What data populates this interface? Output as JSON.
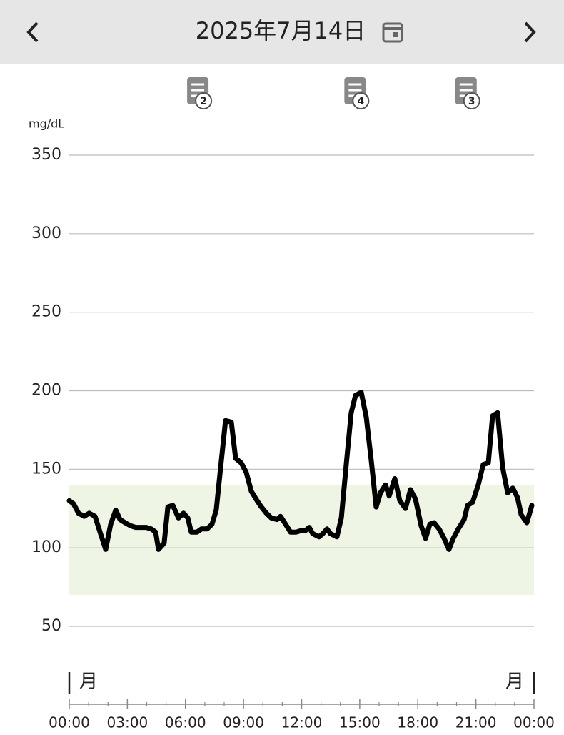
{
  "header": {
    "date": "2025年7月14日"
  },
  "chart_data": {
    "type": "line",
    "unit": "mg/dL",
    "x": [
      0,
      0.22,
      0.48,
      0.77,
      1.03,
      1.33,
      1.59,
      1.88,
      2.14,
      2.4,
      2.62,
      2.88,
      3.17,
      3.43,
      3.72,
      3.98,
      4.24,
      4.46,
      4.61,
      4.9,
      5.09,
      5.35,
      5.64,
      5.9,
      6.12,
      6.3,
      6.6,
      6.82,
      7.12,
      7.37,
      7.59,
      7.85,
      8.07,
      8.37,
      8.59,
      8.88,
      9.14,
      9.4,
      9.7,
      9.92,
      10.18,
      10.43,
      10.73,
      10.91,
      11.17,
      11.43,
      11.72,
      11.98,
      12.2,
      12.39,
      12.57,
      12.9,
      13.09,
      13.31,
      13.49,
      13.82,
      14.05,
      14.31,
      14.56,
      14.78,
      15.08,
      15.34,
      15.59,
      15.85,
      16.07,
      16.33,
      16.52,
      16.81,
      17.07,
      17.36,
      17.62,
      17.88,
      18.17,
      18.4,
      18.62,
      18.84,
      19.1,
      19.36,
      19.61,
      19.83,
      20.09,
      20.39,
      20.57,
      20.83,
      21.12,
      21.38,
      21.64,
      21.86,
      22.12,
      22.38,
      22.64,
      22.9,
      23.15,
      23.34,
      23.63,
      23.89
    ],
    "values": [
      130,
      128,
      122,
      120,
      122,
      120,
      110,
      99,
      115,
      124,
      118,
      116,
      114,
      113,
      113,
      113,
      112,
      110,
      99,
      103,
      126,
      127,
      119,
      122,
      119,
      110,
      110,
      112,
      112,
      115,
      124,
      155,
      181,
      180,
      157,
      154,
      148,
      136,
      130,
      126,
      122,
      119,
      118,
      120,
      115,
      110,
      110,
      111,
      111,
      113,
      109,
      107,
      109,
      112,
      109,
      107,
      119,
      154,
      186,
      197,
      199,
      183,
      156,
      126,
      135,
      140,
      133,
      144,
      130,
      125,
      137,
      131,
      114,
      106,
      115,
      116,
      112,
      106,
      99,
      106,
      112,
      118,
      127,
      129,
      140,
      153,
      154,
      184,
      186,
      151,
      135,
      138,
      132,
      121,
      116,
      127
    ],
    "color": "#000000",
    "target_range": [
      70,
      140
    ],
    "target_color": "#eef5e4",
    "ylim": [
      50,
      350
    ],
    "yticks": [
      50,
      100,
      150,
      200,
      250,
      300,
      350
    ],
    "grid": true,
    "xlim": [
      0,
      24
    ],
    "xticks": [
      {
        "value": 0,
        "label": "00:00"
      },
      {
        "value": 3,
        "label": "03:00"
      },
      {
        "value": 6,
        "label": "06:00"
      },
      {
        "value": 9,
        "label": "09:00"
      },
      {
        "value": 12,
        "label": "12:00"
      },
      {
        "value": 15,
        "label": "15:00"
      },
      {
        "value": 18,
        "label": "18:00"
      },
      {
        "value": 21,
        "label": "21:00"
      },
      {
        "value": 24,
        "label": "00:00"
      }
    ],
    "xminorticks": [
      1,
      2,
      4,
      5,
      7,
      8,
      10,
      11,
      13,
      14,
      16,
      17,
      19,
      20,
      22,
      23
    ],
    "day_markers": [
      {
        "x": 0,
        "label": "月"
      },
      {
        "x": 24,
        "label": "月"
      }
    ],
    "notes": [
      {
        "x": 6.75,
        "count": 2
      },
      {
        "x": 14.87,
        "count": 4
      },
      {
        "x": 20.6,
        "count": 3
      }
    ]
  }
}
